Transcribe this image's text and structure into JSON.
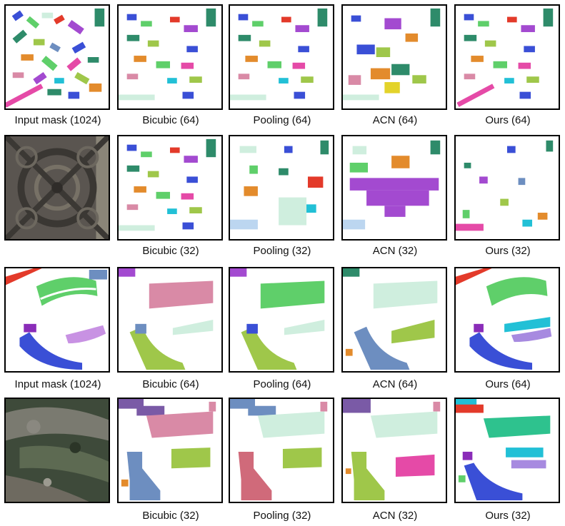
{
  "colors": {
    "teal": "#2e8b6a",
    "green": "#5fcf6a",
    "pink": "#d98aa6",
    "purple": "#a34ad0",
    "blue": "#3a4fd6",
    "orange": "#e38b2c",
    "red": "#e33a2a",
    "mint": "#cfeede",
    "cyan": "#22c0d6",
    "lime": "#9fc74a",
    "magenta": "#e54aa7",
    "steel": "#6d8ec0"
  },
  "rows": [
    {
      "captions": [
        "Input mask (1024)",
        "Bicubic (64)",
        "Pooling (64)",
        "ACN (64)",
        "Ours (64)"
      ],
      "first_tile": "mask"
    },
    {
      "captions": [
        "",
        "Bicubic (32)",
        "Pooling (32)",
        "ACN (32)",
        "Ours (32)"
      ],
      "first_tile": "aerial"
    },
    {
      "captions": [
        "Input mask (1024)",
        "Bicubic (64)",
        "Pooling (64)",
        "ACN (64)",
        "Ours (64)"
      ],
      "first_tile": "mask"
    },
    {
      "captions": [
        "",
        "Bicubic (32)",
        "Pooling (32)",
        "ACN (32)",
        "Ours (32)"
      ],
      "first_tile": "aerial"
    }
  ]
}
